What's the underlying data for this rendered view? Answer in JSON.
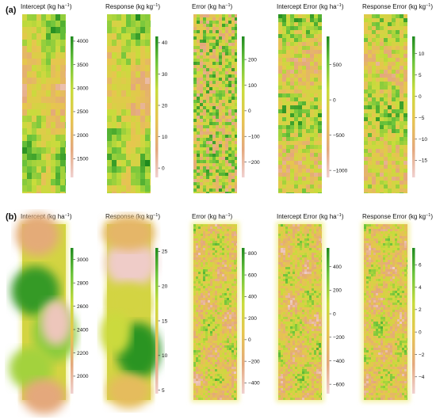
{
  "colors": {
    "low": "#f0d0d0",
    "mid1": "#e4a87c",
    "mid2": "#e6c64e",
    "mid3": "#c8dc3c",
    "high1": "#6cc43c",
    "high2": "#1f8a1f",
    "background": "#ffffff"
  },
  "chart_data": [
    {
      "row": "(a)",
      "type": "heatmap",
      "title": "Intercept (kg ha⁻¹)",
      "title_base": "Intercept (kg ha",
      "title_sup": "−1",
      "title_end": ")",
      "ticks": [
        4000,
        3500,
        3000,
        2500,
        2000,
        1500
      ],
      "range": [
        1100,
        4100
      ],
      "pattern": "smooth",
      "seed": 11
    },
    {
      "row": "(a)",
      "type": "heatmap",
      "title": "Response (kg kg⁻¹)",
      "title_base": "Response (kg kg",
      "title_sup": "−1",
      "title_end": ")",
      "ticks": [
        40,
        30,
        20,
        10,
        0
      ],
      "range": [
        -3,
        42
      ],
      "pattern": "smooth",
      "seed": 23
    },
    {
      "row": "(a)",
      "type": "heatmap",
      "title": "Error (kg ha⁻¹)",
      "title_base": "Error (kg ha",
      "title_sup": "−1",
      "title_end": ")",
      "ticks": [
        200,
        100,
        0,
        -100,
        -200
      ],
      "range": [
        -260,
        290
      ],
      "pattern": "noise",
      "seed": 37
    },
    {
      "row": "(a)",
      "type": "heatmap",
      "title": "Intercept Error (kg ha⁻¹)",
      "title_base": "Intercept Error (kg ha",
      "title_sup": "−1",
      "title_end": ")",
      "ticks": [
        500,
        0,
        -500,
        -1000
      ],
      "range": [
        -1100,
        900
      ],
      "pattern": "mixed",
      "seed": 41
    },
    {
      "row": "(a)",
      "type": "heatmap",
      "title": "Response Error (kg kg⁻¹)",
      "title_base": "Response Error (kg kg",
      "title_sup": "−1",
      "title_end": ")",
      "ticks": [
        10,
        5,
        0,
        -5,
        -10,
        -15
      ],
      "range": [
        -19,
        14
      ],
      "pattern": "mixed",
      "seed": 53
    },
    {
      "row": "(b)",
      "type": "heatmap",
      "title": "Intercept (kg ha⁻¹)",
      "title_base": "Intercept (kg ha",
      "title_sup": "−1",
      "title_end": ")",
      "ticks": [
        3000,
        2800,
        2600,
        2400,
        2200,
        2000
      ],
      "range": [
        1850,
        3100
      ],
      "pattern": "intercept_b",
      "seed": 61
    },
    {
      "row": "(b)",
      "type": "heatmap",
      "title": "Response (kg kg⁻¹)",
      "title_base": "Response (kg kg",
      "title_sup": "−1",
      "title_end": ")",
      "ticks": [
        25,
        20,
        15,
        10,
        5
      ],
      "range": [
        4.5,
        25.5
      ],
      "pattern": "response_b",
      "seed": 67
    },
    {
      "row": "(b)",
      "type": "heatmap",
      "title": "Error (kg ha⁻¹)",
      "title_base": "Error (kg ha",
      "title_sup": "−1",
      "title_end": ")",
      "ticks": [
        800,
        600,
        400,
        200,
        0,
        -200,
        -400
      ],
      "range": [
        -500,
        850
      ],
      "pattern": "blob",
      "seed": 71
    },
    {
      "row": "(b)",
      "type": "heatmap",
      "title": "Intercept Error (kg ha⁻¹)",
      "title_base": "Intercept Error (kg ha",
      "title_sup": "−1",
      "title_end": ")",
      "ticks": [
        400,
        200,
        0,
        -200,
        -400,
        -600
      ],
      "range": [
        -680,
        560
      ],
      "pattern": "blob",
      "seed": 79
    },
    {
      "row": "(b)",
      "type": "heatmap",
      "title": "Response Error (kg kg⁻¹)",
      "title_base": "Response Error (kg kg",
      "title_sup": "−1",
      "title_end": ")",
      "ticks": [
        6,
        4,
        2,
        0,
        -2,
        -4
      ],
      "range": [
        -5.5,
        7.5
      ],
      "pattern": "blob",
      "seed": 83
    }
  ]
}
